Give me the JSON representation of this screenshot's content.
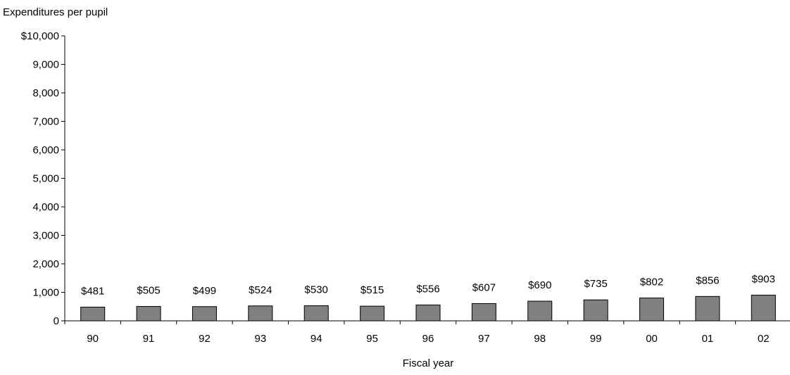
{
  "chart_data": {
    "type": "bar",
    "title": "",
    "ylabel": "Expenditures per pupil",
    "xlabel": "Fiscal year",
    "categories": [
      "90",
      "91",
      "92",
      "93",
      "94",
      "95",
      "96",
      "97",
      "98",
      "99",
      "00",
      "01",
      "02"
    ],
    "values": [
      481,
      505,
      499,
      524,
      530,
      515,
      556,
      607,
      690,
      735,
      802,
      856,
      903
    ],
    "data_labels": [
      "$481",
      "$505",
      "$499",
      "$524",
      "$530",
      "$515",
      "$556",
      "$607",
      "$690",
      "$735",
      "$802",
      "$856",
      "$903"
    ],
    "ylim": [
      0,
      10000
    ],
    "yticks": [
      0,
      1000,
      2000,
      3000,
      4000,
      5000,
      6000,
      7000,
      8000,
      9000,
      10000
    ],
    "ytick_labels": [
      "0",
      "1,000",
      "2,000",
      "3,000",
      "4,000",
      "5,000",
      "6,000",
      "7,000",
      "8,000",
      "9,000",
      "$10,000"
    ],
    "grid": false,
    "legend": "none",
    "bar_color": "#808080"
  }
}
